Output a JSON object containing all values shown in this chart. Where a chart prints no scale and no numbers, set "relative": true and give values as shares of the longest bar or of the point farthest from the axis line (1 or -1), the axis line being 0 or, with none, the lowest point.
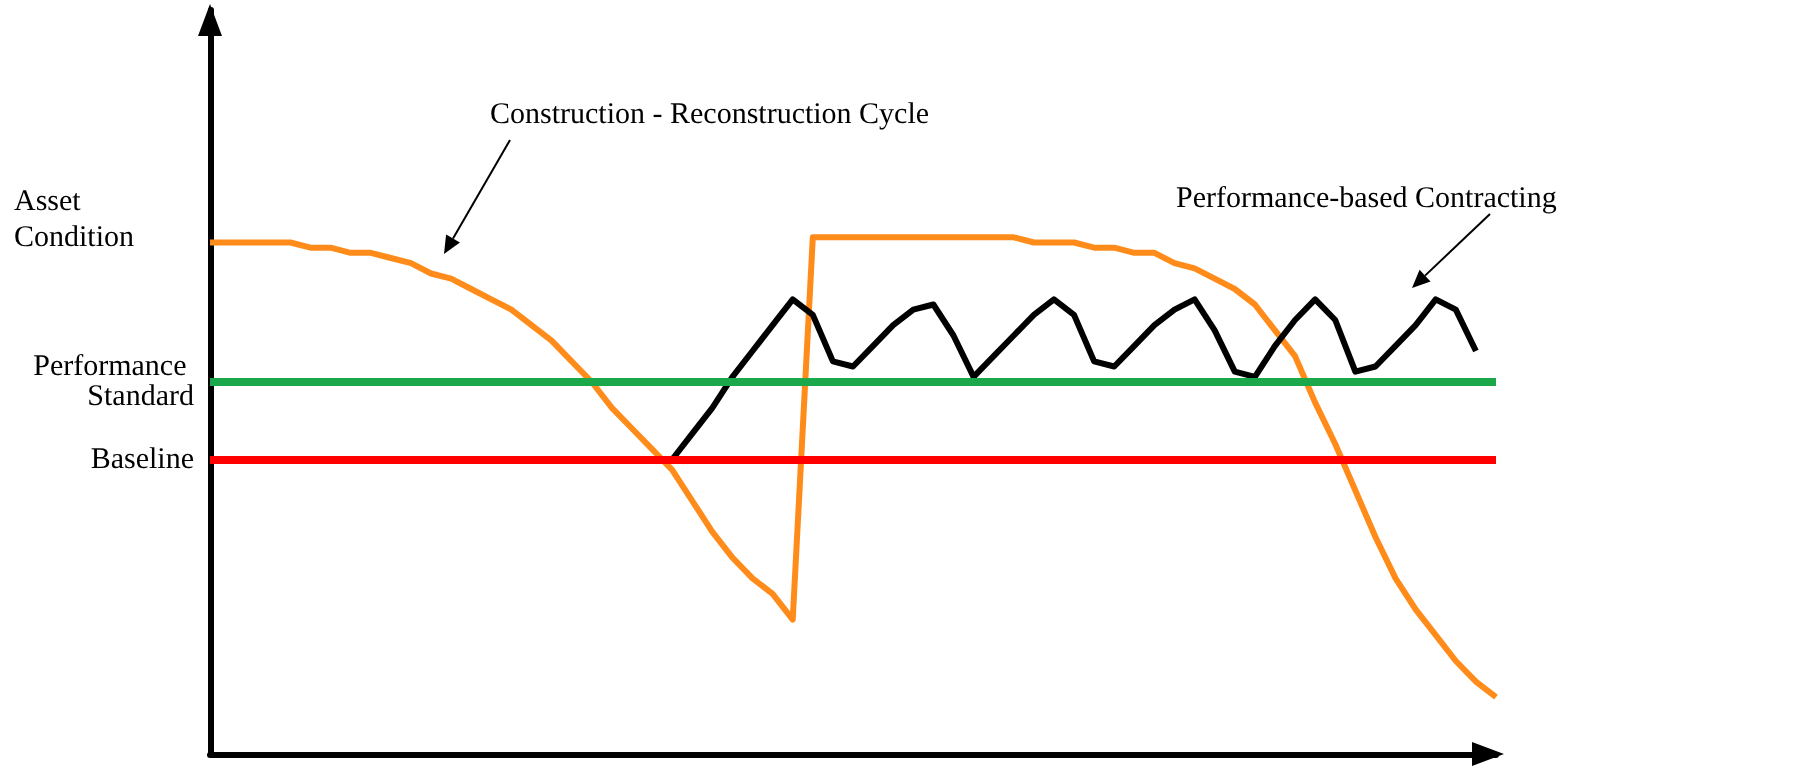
{
  "chart_data": {
    "type": "line",
    "relative": true,
    "marker": "none",
    "ylabel": "Asset Condition",
    "annotations": [
      "Construction - Reconstruction Cycle",
      "Performance-based Contracting"
    ],
    "categories": [
      null,
      null,
      null,
      null,
      null,
      null,
      null,
      null,
      null,
      null,
      null,
      null,
      null,
      null,
      null,
      null,
      null,
      null,
      null,
      null,
      null,
      null,
      null,
      null,
      null,
      null,
      null,
      null,
      null,
      null,
      null,
      null,
      null,
      null,
      null,
      null,
      null,
      null,
      null,
      null,
      null,
      null,
      null,
      null,
      null,
      null,
      null,
      null,
      null,
      null,
      null,
      null,
      null,
      null,
      null,
      null,
      null,
      null,
      null,
      null,
      null,
      null,
      null,
      null,
      null
    ],
    "series": [
      {
        "color": "#ff8c1a",
        "values": [
          0.99,
          0.99,
          0.99,
          0.99,
          0.99,
          0.98,
          0.98,
          0.97,
          0.97,
          0.96,
          0.95,
          0.93,
          0.92,
          0.9,
          0.88,
          0.86,
          0.83,
          0.8,
          0.76,
          0.72,
          0.67,
          0.63,
          0.59,
          0.55,
          0.49,
          0.43,
          0.38,
          0.34,
          0.31,
          0.26,
          1,
          1,
          1,
          1,
          1,
          1,
          1,
          1,
          1,
          1,
          1,
          0.99,
          0.99,
          0.99,
          0.98,
          0.98,
          0.97,
          0.97,
          0.95,
          0.94,
          0.92,
          0.9,
          0.87,
          0.82,
          0.77,
          0.68,
          0.6,
          0.51,
          0.42,
          0.34,
          0.28,
          0.23,
          0.18,
          0.14,
          0.11
        ]
      },
      {
        "color": "#000000",
        "values": [
          null,
          null,
          null,
          null,
          null,
          null,
          null,
          null,
          null,
          null,
          null,
          null,
          null,
          null,
          null,
          null,
          null,
          null,
          null,
          null,
          null,
          null,
          null,
          0.57,
          0.62,
          0.67,
          0.73,
          0.78,
          0.83,
          0.88,
          0.85,
          0.76,
          0.75,
          0.79,
          0.83,
          0.86,
          0.87,
          0.81,
          0.73,
          0.77,
          0.81,
          0.85,
          0.88,
          0.85,
          0.76,
          0.75,
          0.79,
          0.83,
          0.86,
          0.88,
          0.82,
          0.74,
          0.73,
          0.79,
          0.84,
          0.88,
          0.84,
          0.74,
          0.75,
          0.79,
          0.83,
          0.88,
          0.86,
          0.78,
          null
        ]
      }
    ],
    "ref_lines": [
      {
        "axis": "y",
        "value": 0.72,
        "label": "Performance Standard",
        "color": "#1aa84b"
      },
      {
        "axis": "y",
        "value": 0.57,
        "label": "Baseline",
        "color": "#ff0000"
      }
    ]
  }
}
